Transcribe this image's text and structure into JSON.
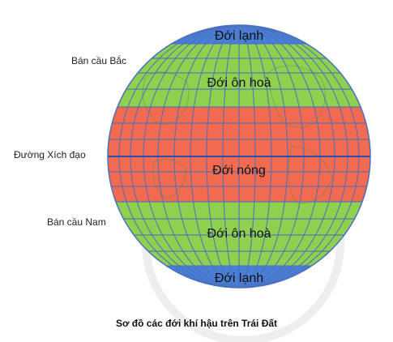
{
  "zones": {
    "north_cold": "Đới lạnh",
    "north_temperate": "Đới ôn hoà",
    "tropical": "Đới nóng",
    "south_temperate": "Đới ôn hoà",
    "south_cold": "Đới lạnh"
  },
  "labels": {
    "northern_hemisphere": "Bán cầu Bắc",
    "equator": "Đường Xích đạo",
    "southern_hemisphere": "Bán cầu Nam"
  },
  "caption": "Sơ đồ các đới khí hậu trên Trái Đất",
  "colors": {
    "cold_zone": "#4a7fd6",
    "temperate_zone": "#8fd14f",
    "tropical_zone": "#f26a4f",
    "grid_lines": "#4a6fc0",
    "equator_line": "#2b4fa8"
  }
}
